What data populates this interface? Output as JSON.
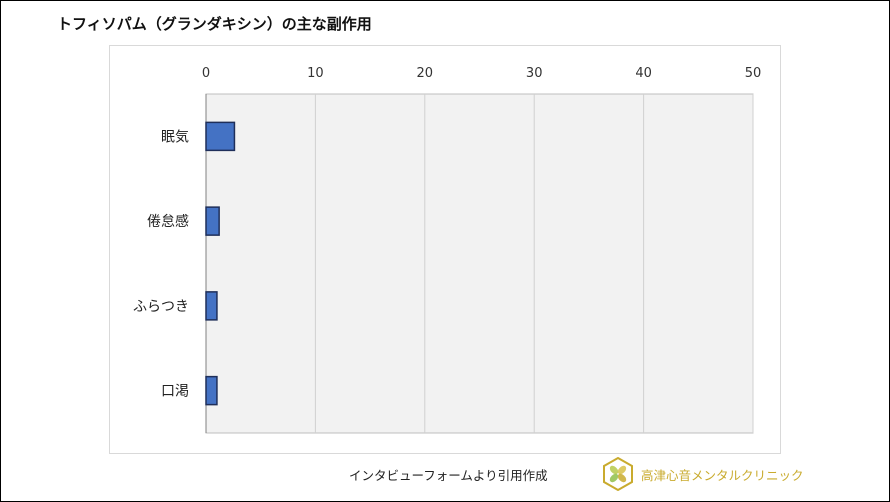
{
  "chart_data": {
    "type": "bar",
    "orientation": "horizontal",
    "title": "トフィソパム（グランダキシン）の主な副作用",
    "categories": [
      "眠気",
      "倦怠感",
      "ふらつき",
      "口渇"
    ],
    "values": [
      2.6,
      1.2,
      1.0,
      1.0
    ],
    "xlim": [
      0,
      50
    ],
    "xticks": [
      0,
      10,
      20,
      30,
      40,
      50
    ],
    "xaxis_position": "top",
    "grid": true,
    "bar_color": "#4472c4",
    "bar_border_color": "#1f2f5a",
    "plot_background": "#f2f2f2"
  },
  "source_note": "インタビューフォームより引用作成",
  "clinic": {
    "name": "高津心音メンタルクリニック",
    "accent_color": "#c9ab2e",
    "logo_icon": "clinic-logo-icon"
  }
}
